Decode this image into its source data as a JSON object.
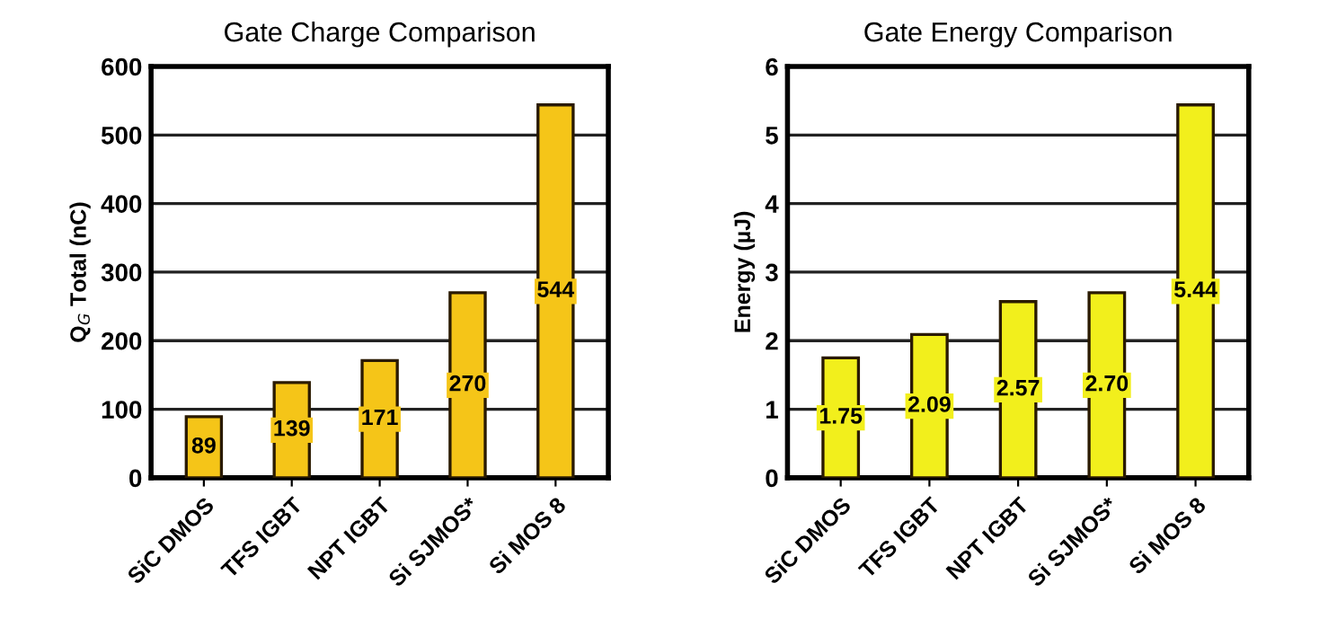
{
  "chart_data": [
    {
      "type": "bar",
      "title": "Gate Charge Comparison",
      "ylabel": "Q$_{G}$ Total (nC)",
      "categories": [
        "SiC DMOS",
        "TFS IGBT",
        "NPT IGBT",
        "Si SJMOS*",
        "Si MOS 8"
      ],
      "values": [
        89,
        139,
        171,
        270,
        544
      ],
      "color": "#f5c518",
      "ylim": [
        0,
        600
      ],
      "yticks": [
        0,
        100,
        200,
        300,
        400,
        500,
        600
      ],
      "grid": "y",
      "data_labels": true
    },
    {
      "type": "bar",
      "title": "Gate Energy Comparison",
      "ylabel": "Energy (µJ)",
      "categories": [
        "SiC DMOS",
        "TFS IGBT",
        "NPT IGBT",
        "Si SJMOS*",
        "Si MOS 8"
      ],
      "values": [
        1.75,
        2.09,
        2.57,
        2.7,
        5.44
      ],
      "value_labels": [
        "1.75",
        "2.09",
        "2.57",
        "2.70",
        "5.44"
      ],
      "color": "#f2ef1c",
      "ylim": [
        0,
        6
      ],
      "yticks": [
        0,
        1,
        2,
        3,
        4,
        5,
        6
      ],
      "grid": "y"
    }
  ]
}
